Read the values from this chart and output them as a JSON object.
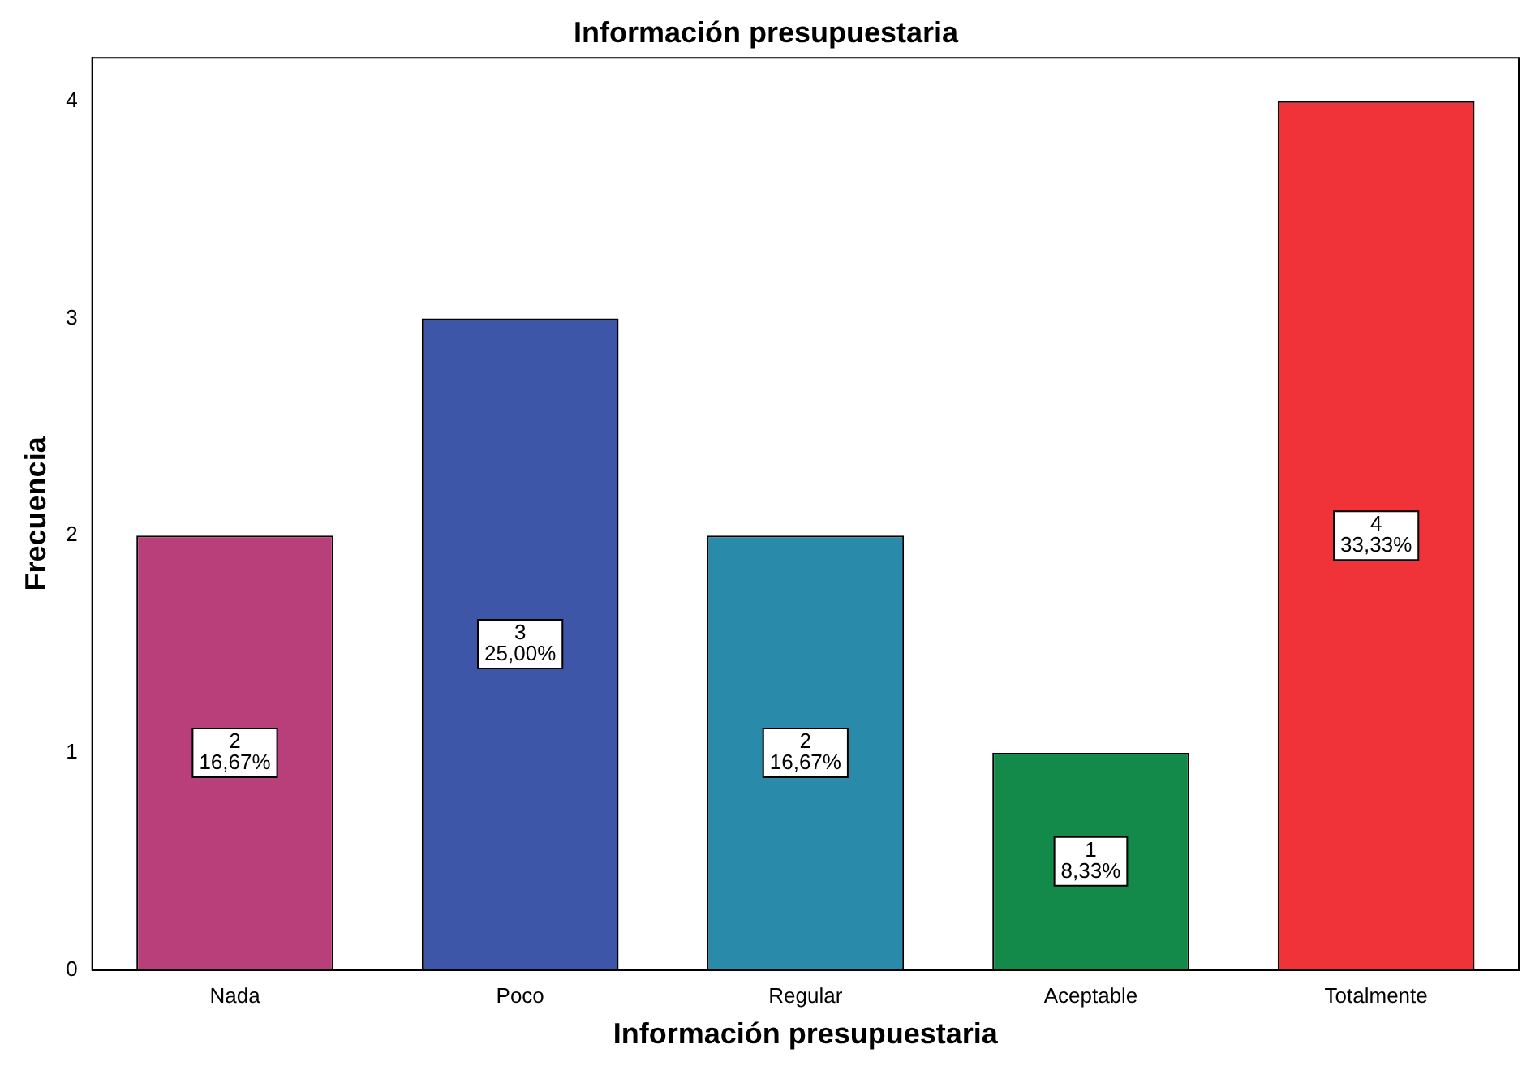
{
  "chart_data": {
    "type": "bar",
    "title": "Información presupuestaria",
    "xlabel": "Información presupuestaria",
    "ylabel": "Frecuencia",
    "categories": [
      "Nada",
      "Poco",
      "Regular",
      "Aceptable",
      "Totalmente"
    ],
    "values": [
      2,
      3,
      2,
      1,
      4
    ],
    "colors": [
      "#b83f7a",
      "#3d56a8",
      "#2a8aaa",
      "#13894a",
      "#ef3338"
    ],
    "value_labels": [
      "2\n16,67%",
      "3\n25,00%",
      "2\n16,67%",
      "1\n8,33%",
      "4\n33,33%"
    ],
    "ylim": [
      0,
      4.2
    ],
    "yticks": [
      0,
      1,
      2,
      3,
      4
    ],
    "grid": false,
    "legend": false
  }
}
